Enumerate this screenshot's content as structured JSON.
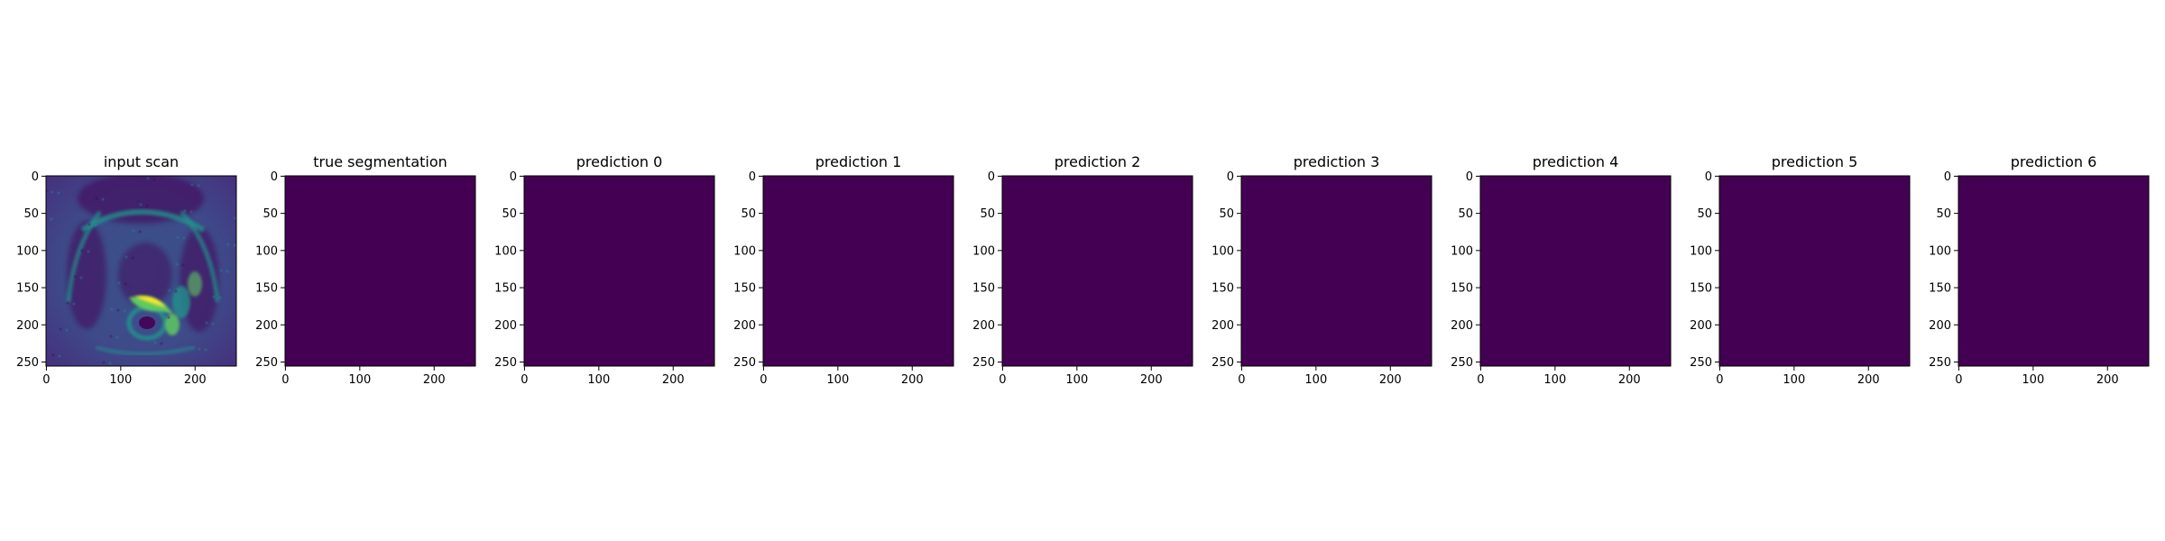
{
  "figure": {
    "panels": [
      {
        "title": "input scan",
        "kind": "mri-scan"
      },
      {
        "title": "true segmentation",
        "kind": "empty-mask"
      },
      {
        "title": "prediction 0",
        "kind": "empty-mask"
      },
      {
        "title": "prediction 1",
        "kind": "empty-mask"
      },
      {
        "title": "prediction 2",
        "kind": "empty-mask"
      },
      {
        "title": "prediction 3",
        "kind": "empty-mask"
      },
      {
        "title": "prediction 4",
        "kind": "empty-mask"
      },
      {
        "title": "prediction 5",
        "kind": "empty-mask"
      },
      {
        "title": "prediction 6",
        "kind": "empty-mask"
      }
    ],
    "x_ticks": [
      "0",
      "100",
      "200"
    ],
    "y_ticks": [
      "0",
      "50",
      "100",
      "150",
      "200",
      "250"
    ],
    "image_extent": 256,
    "colors": {
      "mask_fill": "#440154",
      "viridis_dark": "#440154",
      "viridis_blue": "#3b528b",
      "viridis_teal": "#21918c",
      "viridis_green": "#5ec962",
      "viridis_yellow": "#fde725"
    }
  }
}
